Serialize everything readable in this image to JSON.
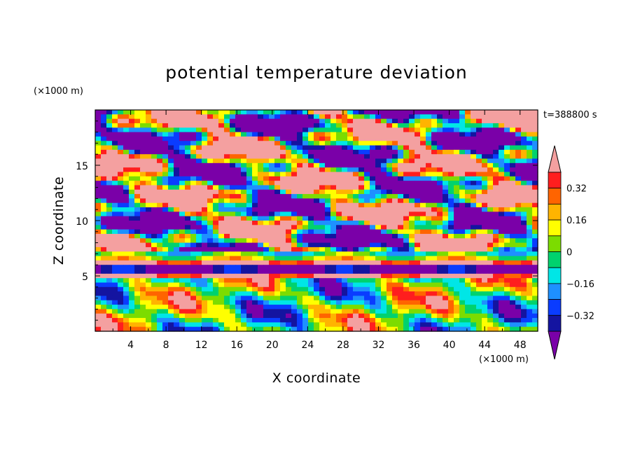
{
  "chart_data": {
    "type": "heatmap",
    "title": "potential temperature deviation",
    "xlabel": "X coordinate",
    "ylabel": "Z coordinate",
    "x_unit": "(×1000 m)",
    "y_unit": "(×1000 m)",
    "time_label": "t=388800 s",
    "xlim": [
      0,
      50
    ],
    "ylim": [
      0,
      20
    ],
    "x_ticks": [
      4,
      8,
      12,
      16,
      20,
      24,
      28,
      32,
      36,
      40,
      44,
      48
    ],
    "y_ticks": [
      5,
      10,
      15
    ],
    "colorbar": {
      "levels": [
        -0.4,
        -0.32,
        -0.24,
        -0.16,
        -0.08,
        0,
        0.08,
        0.16,
        0.24,
        0.32,
        0.4
      ],
      "tick_labels": [
        "0.32",
        "0.16",
        "0",
        "−0.16",
        "−0.32"
      ],
      "tick_values": [
        0.32,
        0.16,
        0,
        -0.16,
        -0.32
      ],
      "colors": [
        "#7a00a8",
        "#1414a0",
        "#0a3cff",
        "#1e90ff",
        "#00e6e6",
        "#00d26e",
        "#7cdc00",
        "#ffff00",
        "#ffb400",
        "#ff6400",
        "#ff1e1e",
        "#f4a0a0"
      ],
      "extend": "both"
    }
  }
}
